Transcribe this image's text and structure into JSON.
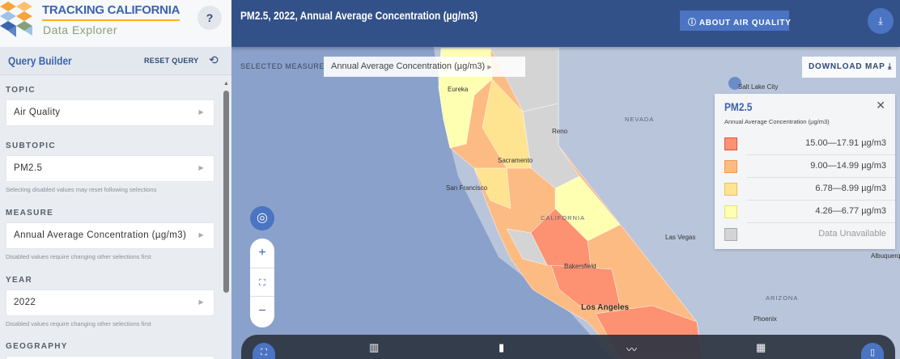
{
  "brand": {
    "title": "TRACKING CALIFORNIA",
    "subtitle": "Data Explorer",
    "help": "?"
  },
  "query_builder": {
    "title": "Query Builder",
    "reset": "RESET QUERY"
  },
  "fields": [
    {
      "label": "TOPIC",
      "value": "Air Quality",
      "hint": ""
    },
    {
      "label": "SUBTOPIC",
      "value": "PM2.5",
      "hint": "Selecting disabled values may reset following selections"
    },
    {
      "label": "MEASURE",
      "value": "Annual Average Concentration (µg/m3)",
      "hint": "Disabled values require changing other selections first"
    },
    {
      "label": "YEAR",
      "value": "2022",
      "hint": "Disabled values require changing other selections first"
    },
    {
      "label": "GEOGRAPHY",
      "value": "",
      "hint": ""
    }
  ],
  "header": {
    "title": "PM2.5, 2022, Annual Average Concentration (µg/m3)",
    "about": "ABOUT AIR QUALITY"
  },
  "map": {
    "selected_label": "SELECTED MEASURE",
    "selected_value": "Annual Average Concentration (µg/m3)",
    "download": "DOWNLOAD MAP",
    "places": [
      "Eureka",
      "Reno",
      "NEVADA",
      "Sacramento",
      "San Francisco",
      "CALIFORNIA",
      "Las Vegas",
      "Bakersfield",
      "Los Angeles",
      "ARIZONA",
      "Phoenix",
      "Salt Lake City",
      "Albuquerque"
    ]
  },
  "legend": {
    "title": "PM2.5",
    "subtitle": "Annual Average Concentration (µg/m3)",
    "items": [
      {
        "label": "15.00—17.91 µg/m3",
        "color": "#fc9272",
        "border": "#e0563b"
      },
      {
        "label": "9.00—14.99 µg/m3",
        "color": "#fdbb84",
        "border": "#ef9a4e"
      },
      {
        "label": "6.78—8.99 µg/m3",
        "color": "#fee391",
        "border": "#f0c04a"
      },
      {
        "label": "4.26—6.77 µg/m3",
        "color": "#ffffb2",
        "border": "#e3e36a"
      },
      {
        "label": "Data Unavailable",
        "color": "#d4d4d4",
        "border": "#aaaaaa"
      }
    ]
  },
  "bottom_bar": {
    "icons": [
      "fullscreen-icon",
      "map-icon",
      "bar-chart-icon",
      "line-chart-icon",
      "calculator-icon",
      "panel-icon"
    ]
  }
}
